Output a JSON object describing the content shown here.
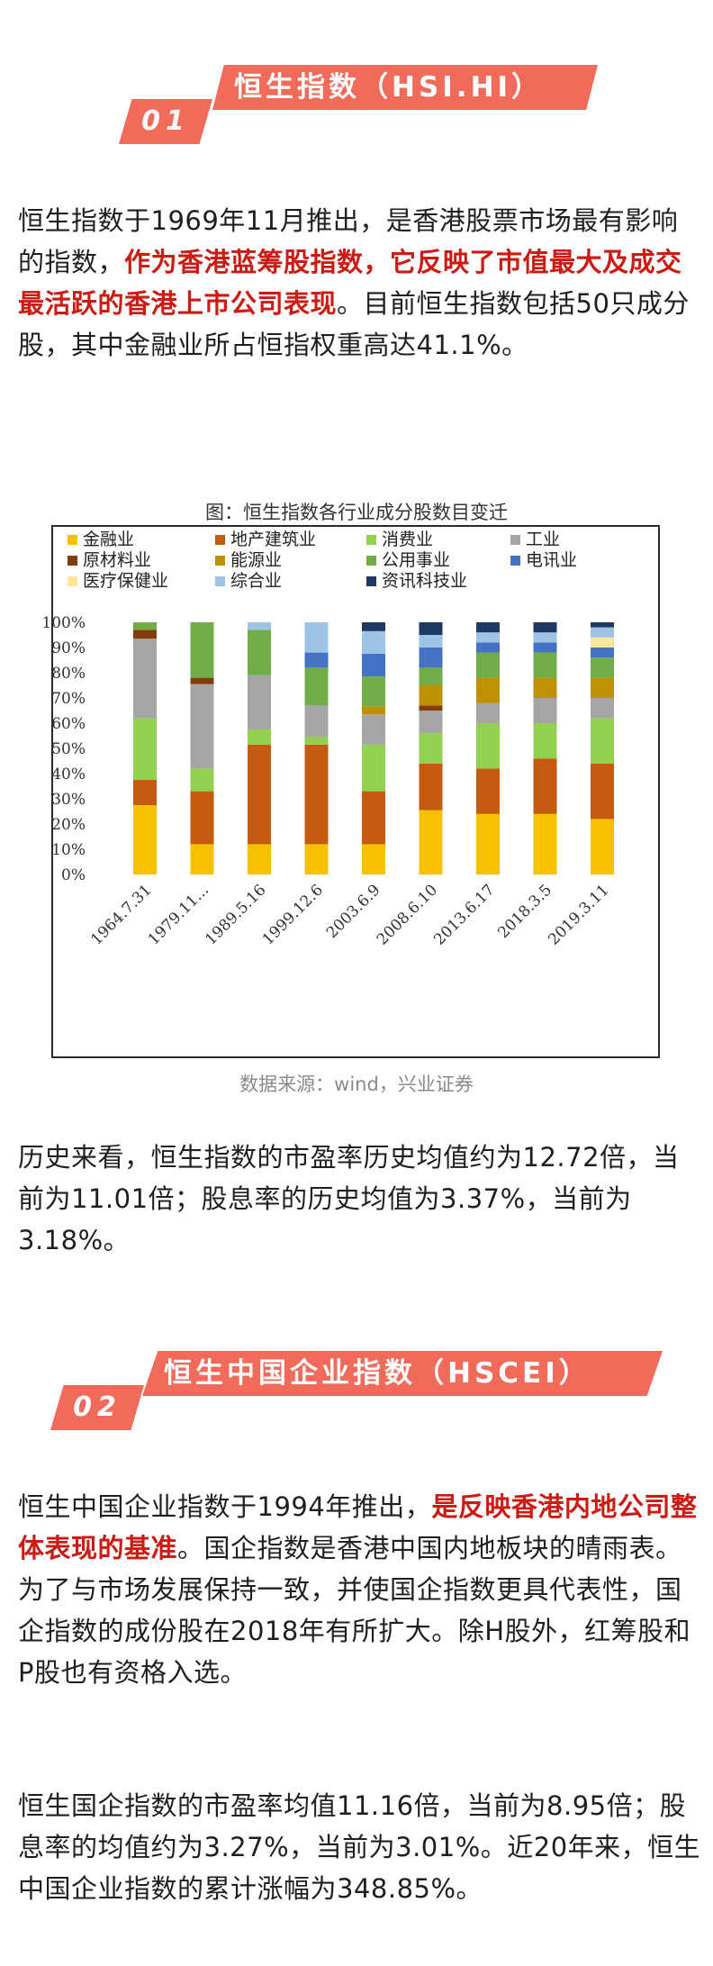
{
  "section1": {
    "number": "01",
    "title": "恒生指数（HSI.HI）",
    "para1": {
      "part1": "恒生指数于1969年11月推出，是香港股票市场最有影响的指数，",
      "highlight": "作为香港蓝筹股指数，它反映了市值最大及成交最活跃的香港上市公司表现",
      "part2": "。目前恒生指数包括50只成分股，其中金融业所占恒指权重高达41.1%。"
    },
    "figure_title": "图：恒生指数各行业成分股数目变迁",
    "source": "数据来源：wind，兴业证券",
    "para2": "历史来看，恒生指数的市盈率历史均值约为12.72倍，当前为11.01倍；股息率的历史均值为3.37%，当前为3.18%。"
  },
  "section2": {
    "number": "02",
    "title": "恒生中国企业指数（HSCEI）",
    "para1": {
      "part1": "恒生中国企业指数于1994年推出，",
      "highlight": "是反映香港内地公司整体表现的基准",
      "part2": "。国企指数是香港中国内地板块的晴雨表。为了与市场发展保持一致，并使国企指数更具代表性，国企指数的成份股在2018年有所扩大。除H股外，红筹股和P股也有资格入选。"
    },
    "para2": "恒生国企指数的市盈率均值11.16倍，当前为8.95倍；股息率的均值约为3.27%，当前为3.01%。近20年来，恒生中国企业指数的累计涨幅为348.85%。"
  },
  "chart_data": {
    "type": "bar",
    "stacked": true,
    "title": "图：恒生指数各行业成分股数目变迁",
    "categories": [
      "1964.7.31",
      "1979.11...",
      "1989.5.16",
      "1999.12.6",
      "2003.6.9",
      "2008.6.10",
      "2013.6.17",
      "2018.3.5",
      "2019.3.11"
    ],
    "y_tick_labels": [
      "0%",
      "10%",
      "20%",
      "30%",
      "40%",
      "50%",
      "60%",
      "70%",
      "80%",
      "90%",
      "100%"
    ],
    "ylim": [
      0,
      100
    ],
    "legend_position": "top",
    "series": [
      {
        "name": "金融业",
        "color": "#f8c100",
        "values": [
          27.5,
          12,
          12,
          12,
          12,
          25.5,
          24,
          24,
          22
        ]
      },
      {
        "name": "地产建筑业",
        "color": "#c55a11",
        "values": [
          10,
          21,
          39.5,
          39.5,
          21,
          18.5,
          18,
          22,
          22
        ]
      },
      {
        "name": "消费业",
        "color": "#92d050",
        "values": [
          24.5,
          9,
          6,
          3,
          18.5,
          12,
          18,
          14,
          18
        ]
      },
      {
        "name": "工业",
        "color": "#a5a5a5",
        "values": [
          31.5,
          33.5,
          21.5,
          12.5,
          12,
          9,
          8,
          10,
          8
        ]
      },
      {
        "name": "原材料业",
        "color": "#843c0c",
        "values": [
          3.5,
          2.5,
          0,
          0,
          0,
          2,
          0,
          0,
          0
        ]
      },
      {
        "name": "能源业",
        "color": "#bf9000",
        "values": [
          0,
          0,
          0,
          0,
          3,
          8,
          10,
          8,
          8
        ]
      },
      {
        "name": "公用事业",
        "color": "#70ad47",
        "values": [
          3,
          22,
          18,
          15,
          12,
          7,
          10,
          10,
          8
        ]
      },
      {
        "name": "电讯业",
        "color": "#4472c4",
        "values": [
          0,
          0,
          0,
          6,
          9,
          8,
          4,
          4,
          4
        ]
      },
      {
        "name": "医疗保健业",
        "color": "#ffe699",
        "values": [
          0,
          0,
          0,
          0,
          0,
          0,
          0,
          0,
          4
        ]
      },
      {
        "name": "综合业",
        "color": "#9dc3e6",
        "values": [
          0,
          0,
          3,
          12,
          9,
          5,
          4,
          4,
          4
        ]
      },
      {
        "name": "资讯科技业",
        "color": "#1f3864",
        "values": [
          0,
          0,
          0,
          0,
          3.5,
          5,
          4,
          4,
          2
        ]
      }
    ]
  }
}
